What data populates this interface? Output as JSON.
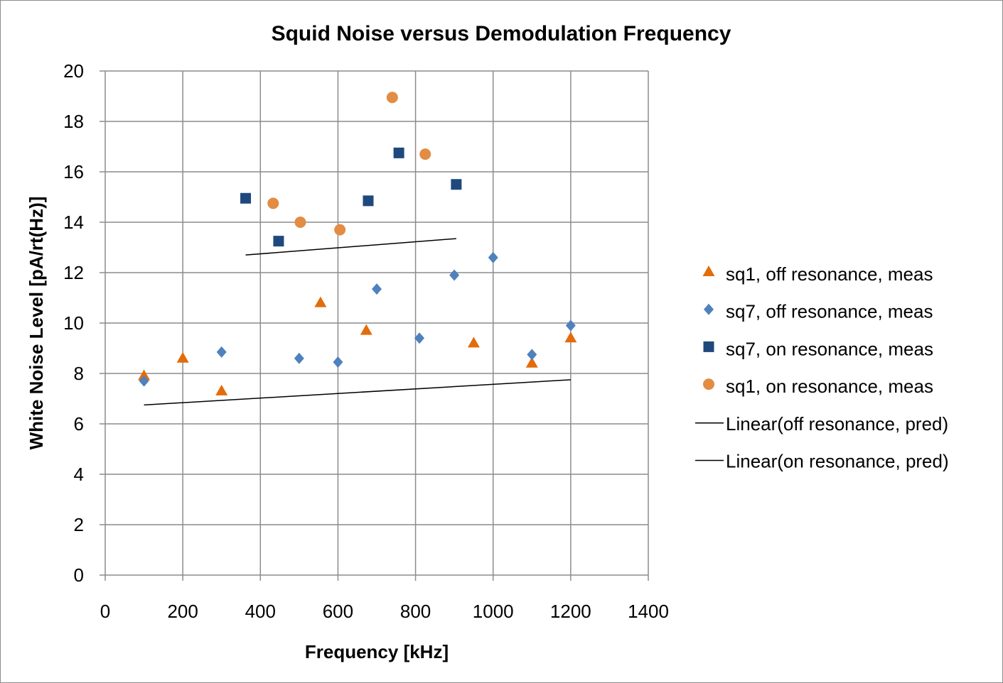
{
  "chart_data": {
    "type": "scatter",
    "title": "Squid Noise versus Demodulation Frequency",
    "xlabel": "Frequency [kHz]",
    "ylabel": "White Noise Level [pA/rt(Hz)]",
    "xlim": [
      0,
      1400
    ],
    "ylim": [
      0,
      20
    ],
    "xticks": [
      0,
      200,
      400,
      600,
      800,
      1000,
      1200,
      1400
    ],
    "yticks": [
      0,
      2,
      4,
      6,
      8,
      10,
      12,
      14,
      16,
      18,
      20
    ],
    "grid": true,
    "legend_position": "right",
    "series": [
      {
        "name": "sq1, off resonance, meas",
        "marker": "triangle",
        "color": "#E36C0A",
        "points": [
          [
            100,
            7.9
          ],
          [
            200,
            8.6
          ],
          [
            300,
            7.3
          ],
          [
            555,
            10.8
          ],
          [
            673,
            9.7
          ],
          [
            950,
            9.2
          ],
          [
            1100,
            8.4
          ],
          [
            1200,
            9.4
          ]
        ]
      },
      {
        "name": "sq7, off resonance, meas",
        "marker": "diamond",
        "color": "#4F81BD",
        "points": [
          [
            100,
            7.7
          ],
          [
            300,
            8.85
          ],
          [
            500,
            8.6
          ],
          [
            600,
            8.45
          ],
          [
            700,
            11.35
          ],
          [
            810,
            9.4
          ],
          [
            900,
            11.9
          ],
          [
            1000,
            12.6
          ],
          [
            1100,
            8.75
          ],
          [
            1200,
            9.9
          ]
        ]
      },
      {
        "name": "sq7, on resonance, meas",
        "marker": "square",
        "color": "#1F497D",
        "points": [
          [
            362,
            14.95
          ],
          [
            447,
            13.25
          ],
          [
            678,
            14.85
          ],
          [
            757,
            16.75
          ],
          [
            905,
            15.5
          ]
        ]
      },
      {
        "name": "sq1, on resonance, meas",
        "marker": "circle",
        "color": "#E38C44",
        "points": [
          [
            433,
            14.75
          ],
          [
            503,
            14.0
          ],
          [
            605,
            13.7
          ],
          [
            740,
            18.95
          ],
          [
            825,
            16.7
          ]
        ]
      },
      {
        "name": "Linear(off resonance, pred)",
        "marker": "line",
        "color": "#000000",
        "points": [
          [
            100,
            6.75
          ],
          [
            1200,
            7.75
          ]
        ]
      },
      {
        "name": "Linear(on resonance, pred)",
        "marker": "line",
        "color": "#000000",
        "points": [
          [
            362,
            12.7
          ],
          [
            905,
            13.35
          ]
        ]
      }
    ]
  }
}
